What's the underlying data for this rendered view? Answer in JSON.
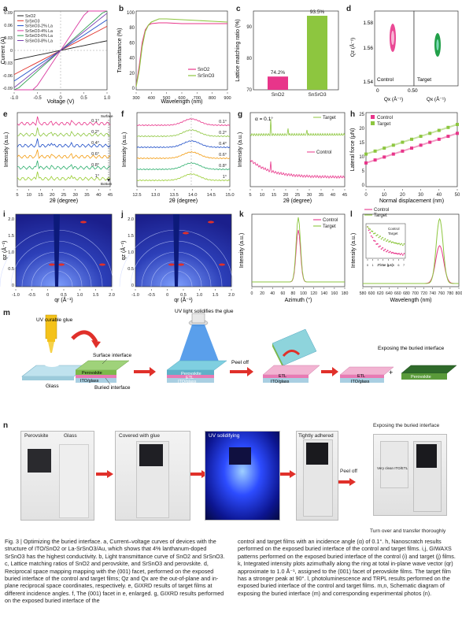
{
  "panel_labels": {
    "a": "a",
    "b": "b",
    "c": "c",
    "d": "d",
    "e": "e",
    "f": "f",
    "g": "g",
    "h": "h",
    "i": "i",
    "j": "j",
    "k": "k",
    "l": "l",
    "m": "m",
    "n": "n"
  },
  "colors": {
    "pink": "#e8358a",
    "green": "#8dc63f",
    "red": "#e0302a",
    "blue": "#1f4fc8",
    "magenta": "#d93aa0",
    "black": "#222222"
  },
  "chart_data": [
    {
      "id": "a",
      "type": "line",
      "xlabel": "Voltage (V)",
      "ylabel": "Current (A)",
      "xlim": [
        -1.0,
        1.0
      ],
      "ylim": [
        -0.09,
        0.09
      ],
      "xticks": [
        "-1.0",
        "-0.5",
        "0",
        "0.5",
        "1.0"
      ],
      "yticks": [
        "0.09",
        "0.06",
        "0.03",
        "0",
        "-0.03",
        "-0.06",
        "-0.09"
      ],
      "series": [
        {
          "name": "SnO2",
          "slope": 0.022,
          "color": "#222222"
        },
        {
          "name": "SrSnO3",
          "slope": 0.055,
          "color": "#e0302a"
        },
        {
          "name": "SrSnO3-2% La",
          "slope": 0.07,
          "color": "#1f4fc8"
        },
        {
          "name": "SrSnO3-4% La",
          "slope": 0.16,
          "color": "#d93aa0"
        },
        {
          "name": "SrSnO3-6% La",
          "slope": 0.095,
          "color": "#2e9e4f"
        },
        {
          "name": "SrSnO3-8% La",
          "slope": 0.085,
          "color": "#7a3fb0"
        }
      ]
    },
    {
      "id": "b",
      "type": "line",
      "xlabel": "Wavelength (nm)",
      "ylabel": "Transmittance (%)",
      "xlim": [
        300,
        900
      ],
      "ylim": [
        0,
        100
      ],
      "xticks": [
        "300",
        "400",
        "500",
        "600",
        "700",
        "800",
        "900"
      ],
      "yticks": [
        "0",
        "20",
        "40",
        "60",
        "80",
        "100"
      ],
      "series": [
        {
          "name": "SnO2",
          "color": "#e8358a",
          "x": [
            300,
            320,
            340,
            360,
            380,
            400,
            450,
            500,
            600,
            700,
            800,
            900
          ],
          "y": [
            5,
            30,
            60,
            76,
            82,
            84,
            85,
            85,
            84,
            84,
            84,
            84
          ]
        },
        {
          "name": "SrSnO3",
          "color": "#8dc63f",
          "x": [
            300,
            320,
            340,
            360,
            380,
            400,
            450,
            500,
            600,
            700,
            800,
            900
          ],
          "y": [
            4,
            25,
            55,
            74,
            82,
            86,
            90,
            90,
            89,
            88,
            87,
            86
          ]
        }
      ]
    },
    {
      "id": "c",
      "type": "bar",
      "ylabel": "Lattice matching ratio (%)",
      "categories": [
        "SnO2",
        "SnSrO3"
      ],
      "values": [
        74.2,
        93.5
      ],
      "value_labels": [
        "74.2%",
        "93.5%"
      ],
      "ylim": [
        70,
        95
      ],
      "yticks": [
        "70",
        "80",
        "90"
      ]
    },
    {
      "id": "d",
      "type": "scatter",
      "xlabel": "Qx (Å⁻¹)",
      "ylabel": "Qz (Å⁻¹)",
      "yticks": [
        "1.58",
        "1.56",
        "1.54"
      ],
      "xticks": [
        "0",
        "0.5",
        "0"
      ],
      "subplots": [
        "Control",
        "Target"
      ]
    },
    {
      "id": "e",
      "type": "line",
      "xlabel": "2θ (degree)",
      "ylabel": "Intensity (a.u.)",
      "xticks": [
        "5",
        "10",
        "15",
        "20",
        "25",
        "30",
        "35",
        "40",
        "45"
      ],
      "series": [
        "0.1°",
        "0.2°",
        "0.4°",
        "0.6°",
        "0.8°",
        "1°"
      ],
      "annotations": [
        "Surface",
        "Bottom"
      ]
    },
    {
      "id": "f",
      "type": "line",
      "xlabel": "2θ (degree)",
      "ylabel": "Intensity (a.u.)",
      "xticks": [
        "12.5",
        "13.0",
        "13.5",
        "14.0",
        "14.5",
        "15.0"
      ],
      "series": [
        "0.1°",
        "0.2°",
        "0.4°",
        "0.6°",
        "0.8°",
        "1°"
      ]
    },
    {
      "id": "g",
      "type": "line",
      "xlabel": "2θ (degree)",
      "ylabel": "Intensity (a.u.)",
      "xticks": [
        "5",
        "10",
        "15",
        "20",
        "25",
        "30",
        "35",
        "40",
        "45"
      ],
      "annotation": "α = 0.1°",
      "series": [
        {
          "name": "Target",
          "color": "#8dc63f"
        },
        {
          "name": "Control",
          "color": "#e8358a"
        }
      ]
    },
    {
      "id": "h",
      "type": "scatter",
      "xlabel": "Normal displacement (nm)",
      "ylabel": "Lateral force (μN)",
      "xlim": [
        0,
        50
      ],
      "ylim": [
        0,
        25
      ],
      "xticks": [
        "0",
        "10",
        "20",
        "30",
        "40",
        "50"
      ],
      "yticks": [
        "0",
        "5",
        "10",
        "15",
        "20",
        "25"
      ],
      "series": [
        {
          "name": "Control",
          "color": "#e8358a",
          "x": [
            0,
            5,
            10,
            15,
            20,
            25,
            30,
            35,
            40,
            45,
            50
          ],
          "y": [
            8,
            9,
            10,
            11,
            12,
            13,
            14,
            15,
            16,
            17,
            18
          ]
        },
        {
          "name": "Target",
          "color": "#8dc63f",
          "x": [
            0,
            5,
            10,
            15,
            20,
            25,
            30,
            35,
            40,
            45,
            50
          ],
          "y": [
            11,
            12,
            13,
            14,
            15,
            16,
            17,
            18,
            19,
            20,
            21
          ]
        }
      ]
    },
    {
      "id": "i",
      "type": "heatmap",
      "xlabel": "qr (Å⁻¹)",
      "ylabel": "qz (Å⁻¹)",
      "xticks": [
        "-1.0",
        "-0.5",
        "0",
        "0.5",
        "1.0",
        "1.5",
        "2.0"
      ],
      "yticks": [
        "0",
        "0.5",
        "1.0",
        "1.5",
        "2.0"
      ]
    },
    {
      "id": "j",
      "type": "heatmap",
      "xlabel": "qr (Å⁻¹)",
      "ylabel": "qz (Å⁻¹)",
      "xticks": [
        "-1.0",
        "-0.5",
        "0",
        "0.5",
        "1.0",
        "1.5",
        "2.0"
      ],
      "yticks": [
        "0",
        "0.5",
        "1.0",
        "1.5",
        "2.0"
      ]
    },
    {
      "id": "k",
      "type": "line",
      "xlabel": "Azimuth (°)",
      "ylabel": "Intensity (a.u.)",
      "xlim": [
        0,
        180
      ],
      "xticks": [
        "0",
        "20",
        "40",
        "60",
        "80",
        "100",
        "120",
        "140",
        "160",
        "180"
      ],
      "series": [
        {
          "name": "Control",
          "color": "#e8358a"
        },
        {
          "name": "Target",
          "color": "#8dc63f"
        }
      ]
    },
    {
      "id": "l",
      "type": "line",
      "xlabel": "Wavelength (nm)",
      "ylabel": "Intensity (a.u.)",
      "xticks": [
        "580",
        "600",
        "620",
        "640",
        "660",
        "680",
        "700",
        "720",
        "740",
        "760",
        "780",
        "800"
      ],
      "series": [
        {
          "name": "Control",
          "color": "#e8358a"
        },
        {
          "name": "Target",
          "color": "#8dc63f"
        }
      ],
      "inset": {
        "xlabel": "Time (μs)",
        "ylabel": "Intensity (a.u.)",
        "xticks": [
          "0",
          "1",
          "2",
          "3",
          "4",
          "5",
          "6",
          "7"
        ],
        "series": [
          "Control",
          "Target"
        ]
      }
    }
  ],
  "panel_m": {
    "uv_glue": "UV curable glue",
    "glass": "Glass",
    "surface_interface": "Surface interface",
    "perovskite": "Perovskite",
    "etl": "ETL",
    "ito": "ITO/glass",
    "buried_interface": "Buried interface",
    "uv_solidifies": "UV light solidifies the glue",
    "peel_off": "Peel off",
    "exposing": "Exposing the buried interface",
    "plus": "+"
  },
  "panel_n": {
    "perovskite": "Perovskite",
    "glass": "Glass",
    "covered": "Covered with glue",
    "uv": "UV solidifying",
    "tight": "Tightly adhered",
    "peel": "Peel off",
    "exposing": "Exposing the buried interface",
    "clean": "Very clean ITO/ETL",
    "turn": "Turn over and transfer thoroughly"
  },
  "caption": {
    "left": "Fig. 3 | Optimizing the buried interface. a, Current–voltage curves of devices with the structure of ITO/SnO2 or La-SrSnO3/Au, which shows that 4% lanthanum-doped SrSnO3 has the highest conductivity. b, Light transmittance curve of SnO2 and SrSnO3. c, Lattice matching ratios of SnO2 and perovskite, and SrSnO3 and perovskite. d, Reciprocal space mapping mapping with the (001) facet, performed on the exposed buried interface of the control and target films; Qz and Qx are the out-of-plane and in-plane reciprocal space coordinates, respectively. e, GIXRD results of target films at different incidence angles. f, The (001) facet in e, enlarged. g, GIXRD results performed on the exposed buried interface of the",
    "right": "control and target films with an incidence angle (α) of 0.1°. h, Nanoscratch results performed on the exposed buried interface of the control and target films. i,j, GIWAXS patterns performed on the exposed buried interface of the control (i) and target (j) films. k, Integrated intensity plots azimuthally along the ring at total in-plane wave vector (qr) approximate to 1.0 Å⁻¹, assigned to the (001) facet of perovskite films. The target film has a stronger peak at 90°. l, photoluminescence and TRPL results performed on the exposed buried interface of the control and target films. m,n, Schematic diagram of exposing the buried interface (m) and corresponding experimental photos (n)."
  }
}
